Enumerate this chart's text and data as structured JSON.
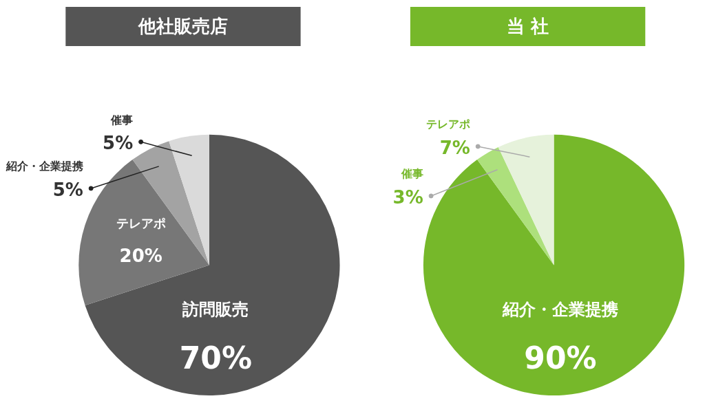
{
  "chart_data": [
    {
      "type": "pie",
      "title": "他社販売店",
      "categories": [
        "訪問販売",
        "テレアポ",
        "紹介・企業提携",
        "催事"
      ],
      "values": [
        70,
        20,
        5,
        5
      ],
      "value_labels": [
        "70%",
        "20%",
        "5%",
        "5%"
      ],
      "colors": [
        "#555555",
        "#777777",
        "#a3a3a3",
        "#dadada"
      ]
    },
    {
      "type": "pie",
      "title": "当 社",
      "categories": [
        "紹介・企業提携",
        "催事",
        "テレアポ"
      ],
      "values": [
        90,
        3,
        7
      ],
      "value_labels": [
        "90%",
        "3%",
        "7%"
      ],
      "colors": [
        "#76b82a",
        "#ade07c",
        "#e6f2db"
      ]
    }
  ]
}
